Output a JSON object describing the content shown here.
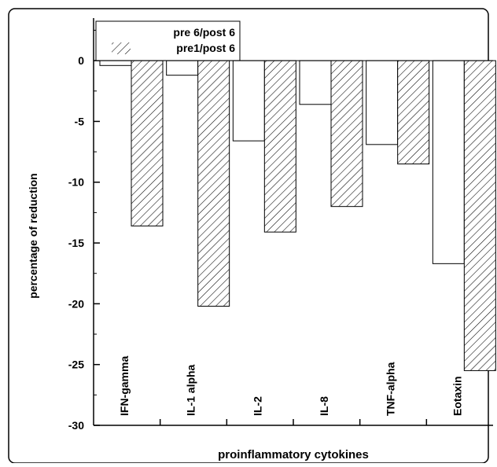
{
  "chart_data": {
    "type": "bar",
    "title": "",
    "xlabel": "proinflammatory cytokines",
    "ylabel": "percentage of reduction",
    "ylim": [
      -30,
      3.5
    ],
    "yticks": [
      0,
      -5,
      -10,
      -15,
      -20,
      -25,
      -30
    ],
    "grid": false,
    "legend_position": "top-left",
    "categories": [
      "IFN-gamma",
      "IL-1 alpha",
      "IL-2",
      "IL-8",
      "TNF-alpha",
      "Eotaxin"
    ],
    "series": [
      {
        "name": "pre 6/post 6",
        "values": [
          -0.4,
          -1.2,
          -6.6,
          -3.6,
          -6.9,
          -16.7
        ],
        "fill": "#ffffff",
        "pattern": "none"
      },
      {
        "name": "pre1/post 6",
        "values": [
          -13.6,
          -20.2,
          -14.1,
          -12.0,
          -8.5,
          -25.5
        ],
        "fill": "#ffffff",
        "pattern": "diagonal-hatch"
      }
    ]
  }
}
